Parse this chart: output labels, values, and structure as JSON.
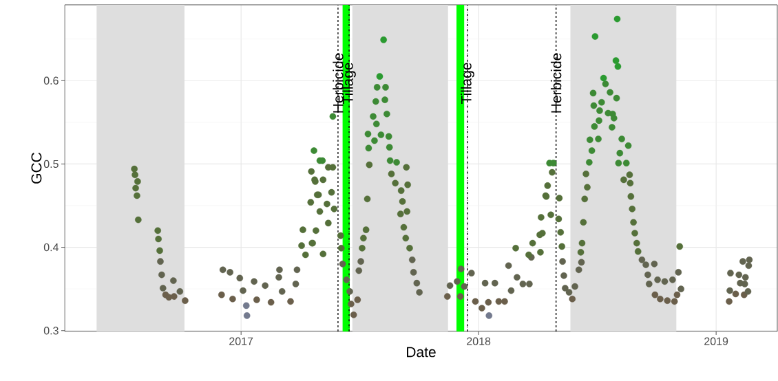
{
  "chart_data": {
    "type": "scatter",
    "xlabel": "Date",
    "ylabel": "GCC",
    "marker": "circle",
    "grid": true,
    "xlim": [
      "2016-04-05",
      "2019-04-05"
    ],
    "ylim": [
      0.299,
      0.691
    ],
    "xticks": [
      {
        "value": "2017-01-01",
        "label": "2017"
      },
      {
        "value": "2018-01-01",
        "label": "2018"
      },
      {
        "value": "2019-01-01",
        "label": "2019"
      }
    ],
    "yticks": [
      0.3,
      0.4,
      0.5,
      0.6
    ],
    "bands": [
      {
        "axis": "x",
        "from": "2016-05-24",
        "to": "2016-10-06",
        "color": "#dedede"
      },
      {
        "axis": "x",
        "from": "2017-06-21",
        "to": "2017-11-15",
        "color": "#dedede"
      },
      {
        "axis": "x",
        "from": "2018-05-22",
        "to": "2018-11-01",
        "color": "#dedede"
      },
      {
        "axis": "x",
        "from": "2017-06-06",
        "to": "2017-06-17",
        "color": "#00ff00"
      },
      {
        "axis": "x",
        "from": "2017-11-28",
        "to": "2017-12-10",
        "color": "#00ff00"
      }
    ],
    "ref_lines": [
      {
        "axis": "x",
        "value": "2017-05-30",
        "label": "Herbicide",
        "line_style": "dashed",
        "color": "#000000"
      },
      {
        "axis": "x",
        "value": "2017-06-16",
        "label": "Tillage",
        "line_style": "dashdot",
        "color": "#000000"
      },
      {
        "axis": "x",
        "value": "2017-12-15",
        "label": "Tillage",
        "line_style": "dashdot",
        "color": "#000000"
      },
      {
        "axis": "x",
        "value": "2018-04-30",
        "label": "Herbicide",
        "line_style": "dashed",
        "color": "#000000"
      }
    ],
    "series": [
      {
        "color": "#6b5f4b",
        "x": [
          "2016-09-07",
          "2016-09-12",
          "2016-09-20",
          "2016-10-07",
          "2016-12-02",
          "2016-12-19",
          "2017-01-25",
          "2017-02-16",
          "2017-03-18",
          "2017-06-19",
          "2017-06-23",
          "2017-06-29",
          "2017-11-14",
          "2017-12-04",
          "2017-12-27",
          "2018-01-06",
          "2018-01-16",
          "2018-02-01",
          "2018-02-10",
          "2018-05-25",
          "2018-09-29",
          "2018-10-07",
          "2018-10-18",
          "2018-10-29",
          "2018-11-02",
          "2019-01-21",
          "2019-01-31",
          "2019-02-13"
        ],
        "values": [
          0.343,
          0.34,
          0.341,
          0.336,
          0.343,
          0.338,
          0.337,
          0.334,
          0.335,
          0.332,
          0.319,
          0.337,
          0.341,
          0.341,
          0.335,
          0.327,
          0.334,
          0.335,
          0.335,
          0.338,
          0.343,
          0.338,
          0.336,
          0.335,
          0.343,
          0.335,
          0.344,
          0.343
        ]
      },
      {
        "color": "#626450",
        "x": [
          "2016-08-30",
          "2016-09-01",
          "2016-09-03",
          "2016-09-19",
          "2016-09-29",
          "2016-12-04",
          "2016-12-15",
          "2016-12-30",
          "2017-01-04",
          "2017-01-21",
          "2017-02-07",
          "2017-03-01",
          "2017-02-28",
          "2017-03-05",
          "2017-03-26",
          "2017-03-28",
          "2017-06-06",
          "2017-06-12",
          "2017-06-17",
          "2017-07-01",
          "2017-07-04",
          "2017-09-21",
          "2017-09-23",
          "2017-09-28",
          "2017-10-02",
          "2017-11-18",
          "2017-11-29",
          "2017-12-05",
          "2017-12-10",
          "2017-12-21",
          "2018-01-11",
          "2018-01-26",
          "2018-02-16",
          "2018-02-20",
          "2018-03-01",
          "2018-03-10",
          "2018-03-23",
          "2018-03-20",
          "2018-05-10",
          "2018-05-12",
          "2018-05-14",
          "2018-05-20",
          "2018-05-29",
          "2018-06-04",
          "2018-06-08",
          "2018-09-09",
          "2018-09-15",
          "2018-09-18",
          "2018-09-20",
          "2018-09-28",
          "2018-10-03",
          "2018-10-14",
          "2018-10-26",
          "2018-11-04",
          "2018-11-08",
          "2019-01-23",
          "2019-01-22",
          "2019-02-05",
          "2019-02-07",
          "2019-02-15",
          "2019-02-11",
          "2019-02-14",
          "2019-02-19",
          "2019-02-20",
          "2019-02-21"
        ],
        "values": [
          0.383,
          0.367,
          0.351,
          0.36,
          0.347,
          0.373,
          0.37,
          0.363,
          0.348,
          0.359,
          0.354,
          0.373,
          0.364,
          0.347,
          0.356,
          0.373,
          0.38,
          0.361,
          0.347,
          0.372,
          0.383,
          0.385,
          0.37,
          0.357,
          0.346,
          0.354,
          0.359,
          0.374,
          0.353,
          0.369,
          0.357,
          0.357,
          0.378,
          0.348,
          0.364,
          0.356,
          0.388,
          0.356,
          0.383,
          0.366,
          0.351,
          0.346,
          0.353,
          0.373,
          0.382,
          0.385,
          0.379,
          0.367,
          0.356,
          0.38,
          0.361,
          0.359,
          0.361,
          0.37,
          0.35,
          0.369,
          0.348,
          0.367,
          0.357,
          0.364,
          0.383,
          0.356,
          0.347,
          0.378,
          0.385
        ]
      },
      {
        "color": "#55703a",
        "x": [
          "2016-07-21",
          "2016-07-22",
          "2016-07-26",
          "2016-07-23",
          "2016-07-25",
          "2016-07-27",
          "2016-08-26",
          "2016-08-27",
          "2016-08-29",
          "2017-04-04",
          "2017-04-06",
          "2017-04-10",
          "2017-04-18",
          "2017-04-19",
          "2017-04-21",
          "2017-04-25",
          "2017-04-28",
          "2017-05-15",
          "2017-05-22",
          "2017-04-24",
          "2017-05-07",
          "2017-04-30",
          "2017-05-13",
          "2017-05-20",
          "2017-05-24",
          "2017-05-02",
          "2017-05-15",
          "2017-04-26",
          "2017-04-20",
          "2017-05-07",
          "2017-06-03",
          "2017-06-04",
          "2017-07-06",
          "2017-07-08",
          "2017-07-12",
          "2017-07-14",
          "2017-07-17",
          "2017-08-20",
          "2017-09-12",
          "2017-08-26",
          "2017-09-04",
          "2017-09-14",
          "2017-09-06",
          "2017-09-03",
          "2017-09-13",
          "2017-09-08",
          "2017-09-11",
          "2017-09-17",
          "2018-02-27",
          "2018-03-25",
          "2018-03-19",
          "2018-04-06",
          "2018-04-05",
          "2018-04-07",
          "2018-04-09",
          "2018-04-14",
          "2018-04-15",
          "2018-04-17",
          "2018-04-22",
          "2018-04-24",
          "2018-05-05",
          "2018-05-04",
          "2018-05-07",
          "2018-05-09",
          "2018-06-07",
          "2018-06-09",
          "2018-06-11",
          "2018-06-13",
          "2018-06-17",
          "2018-06-15",
          "2018-08-12",
          "2018-08-21",
          "2018-08-22",
          "2018-08-23",
          "2018-08-25",
          "2018-08-27",
          "2018-08-29",
          "2018-09-01",
          "2018-09-03",
          "2018-11-06"
        ],
        "values": [
          0.494,
          0.487,
          0.479,
          0.471,
          0.462,
          0.433,
          0.42,
          0.41,
          0.396,
          0.402,
          0.421,
          0.391,
          0.454,
          0.491,
          0.405,
          0.479,
          0.463,
          0.496,
          0.496,
          0.481,
          0.481,
          0.463,
          0.452,
          0.466,
          0.446,
          0.443,
          0.429,
          0.42,
          0.405,
          0.392,
          0.414,
          0.399,
          0.399,
          0.411,
          0.421,
          0.458,
          0.499,
          0.488,
          0.496,
          0.477,
          0.468,
          0.475,
          0.455,
          0.44,
          0.443,
          0.424,
          0.411,
          0.399,
          0.399,
          0.405,
          0.391,
          0.394,
          0.415,
          0.436,
          0.417,
          0.462,
          0.461,
          0.474,
          0.439,
          0.49,
          0.459,
          0.434,
          0.418,
          0.401,
          0.394,
          0.405,
          0.43,
          0.458,
          0.472,
          0.488,
          0.481,
          0.487,
          0.477,
          0.461,
          0.446,
          0.43,
          0.417,
          0.405,
          0.395,
          0.401
        ]
      },
      {
        "color": "#3d8a35",
        "x": [
          "2017-04-23",
          "2017-05-02",
          "2017-05-06",
          "2017-05-22",
          "2017-07-16",
          "2017-07-15",
          "2017-07-25",
          "2017-07-23",
          "2017-07-28",
          "2017-07-27",
          "2017-07-29",
          "2017-08-11",
          "2017-08-10",
          "2017-08-13",
          "2017-08-04",
          "2017-08-16",
          "2017-08-17",
          "2017-08-18",
          "2017-08-28",
          "2018-04-20",
          "2018-04-26",
          "2018-06-20",
          "2018-06-24",
          "2018-06-21",
          "2018-06-28",
          "2018-07-04",
          "2018-07-05",
          "2018-06-27",
          "2018-06-26",
          "2018-07-06",
          "2018-07-09",
          "2018-07-15",
          "2018-07-22",
          "2018-07-19",
          "2018-07-26",
          "2018-07-28",
          "2018-07-25",
          "2018-08-01",
          "2018-08-09",
          "2018-08-19",
          "2018-08-06",
          "2018-08-04",
          "2018-08-16"
        ],
        "values": [
          0.516,
          0.504,
          0.504,
          0.557,
          0.519,
          0.536,
          0.528,
          0.557,
          0.548,
          0.575,
          0.592,
          0.592,
          0.577,
          0.56,
          0.535,
          0.533,
          0.52,
          0.504,
          0.502,
          0.501,
          0.501,
          0.502,
          0.516,
          0.529,
          0.545,
          0.53,
          0.552,
          0.57,
          0.585,
          0.564,
          0.574,
          0.596,
          0.586,
          0.561,
          0.56,
          0.555,
          0.544,
          0.579,
          0.53,
          0.522,
          0.513,
          0.501,
          0.501
        ]
      },
      {
        "color": "#2a9a30",
        "x": [
          "2017-08-02",
          "2017-08-08",
          "2018-06-29",
          "2018-07-12",
          "2018-07-31",
          "2018-08-03",
          "2018-08-02"
        ],
        "values": [
          0.605,
          0.649,
          0.653,
          0.603,
          0.624,
          0.617,
          0.674
        ]
      },
      {
        "color": "#737a8e",
        "x": [
          "2017-01-09",
          "2017-01-10",
          "2018-01-17"
        ],
        "values": [
          0.33,
          0.318,
          0.318
        ]
      }
    ]
  }
}
